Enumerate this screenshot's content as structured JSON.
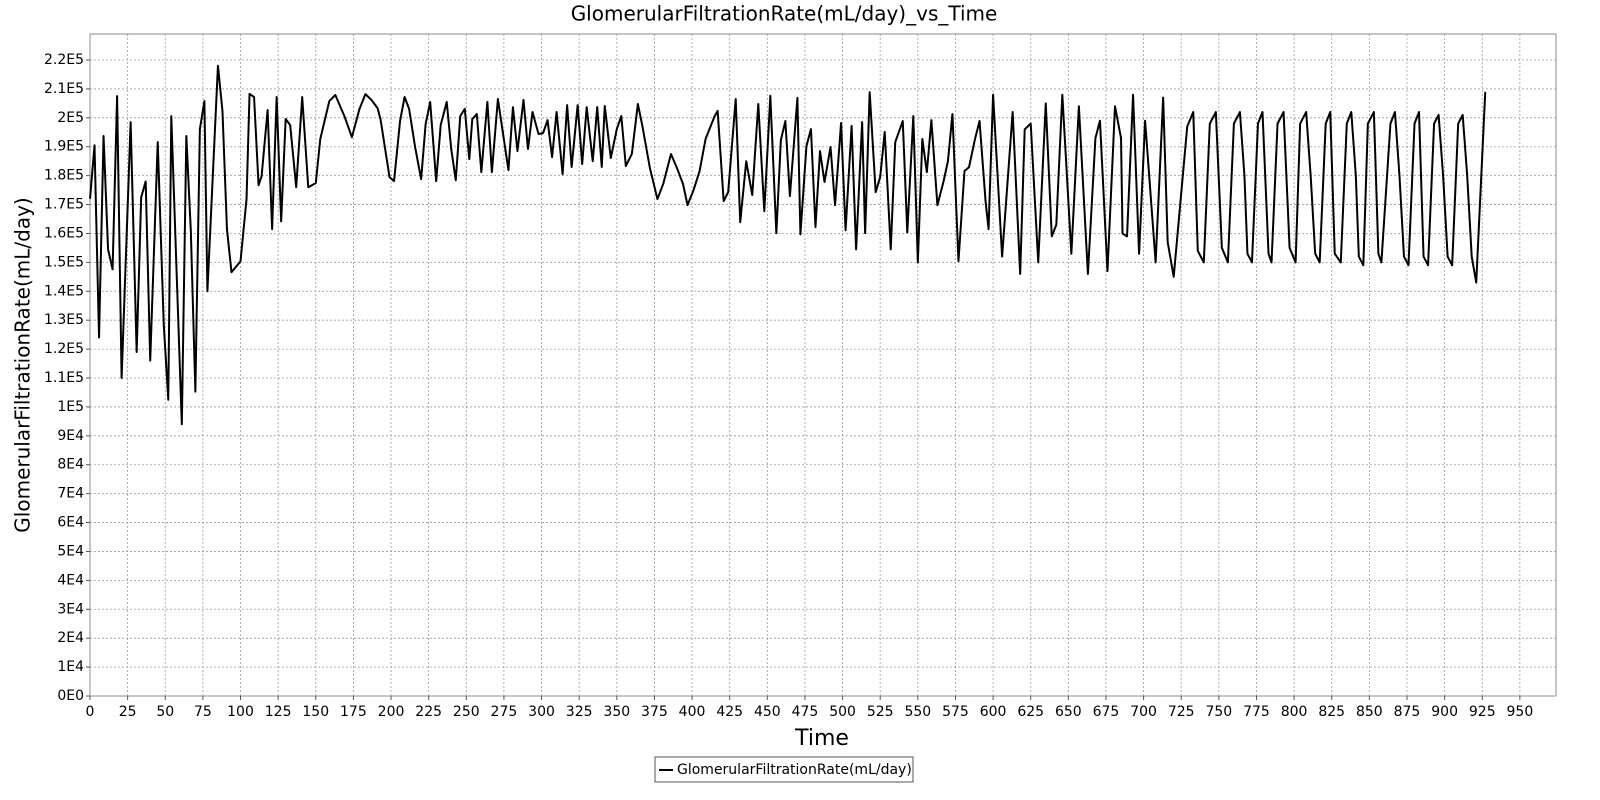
{
  "chart_data": {
    "type": "line",
    "title": "GlomerularFiltrationRate(mL/day)_vs_Time",
    "x_label": "Time",
    "y_label": "GlomerularFiltrationRate(mL/day)",
    "xlim": [
      0,
      974
    ],
    "ylim": [
      0,
      229000
    ],
    "xticks": [
      0,
      25,
      50,
      75,
      100,
      125,
      150,
      175,
      200,
      225,
      250,
      275,
      300,
      325,
      350,
      375,
      400,
      425,
      450,
      475,
      500,
      525,
      550,
      575,
      600,
      625,
      650,
      675,
      700,
      725,
      750,
      775,
      800,
      825,
      850,
      875,
      900,
      925,
      950
    ],
    "yticks": [
      {
        "value": 0,
        "label": "0E0"
      },
      {
        "value": 10000,
        "label": "1E4"
      },
      {
        "value": 20000,
        "label": "2E4"
      },
      {
        "value": 30000,
        "label": "3E4"
      },
      {
        "value": 40000,
        "label": "4E4"
      },
      {
        "value": 50000,
        "label": "5E4"
      },
      {
        "value": 60000,
        "label": "6E4"
      },
      {
        "value": 70000,
        "label": "7E4"
      },
      {
        "value": 80000,
        "label": "8E4"
      },
      {
        "value": 90000,
        "label": "9E4"
      },
      {
        "value": 100000,
        "label": "1E5"
      },
      {
        "value": 110000,
        "label": "1.1E5"
      },
      {
        "value": 120000,
        "label": "1.2E5"
      },
      {
        "value": 130000,
        "label": "1.3E5"
      },
      {
        "value": 140000,
        "label": "1.4E5"
      },
      {
        "value": 150000,
        "label": "1.5E5"
      },
      {
        "value": 160000,
        "label": "1.6E5"
      },
      {
        "value": 170000,
        "label": "1.7E5"
      },
      {
        "value": 180000,
        "label": "1.8E5"
      },
      {
        "value": 190000,
        "label": "1.9E5"
      },
      {
        "value": 200000,
        "label": "2E5"
      },
      {
        "value": 210000,
        "label": "2.1E5"
      },
      {
        "value": 220000,
        "label": "2.2E5"
      }
    ],
    "grid": true,
    "legend": "bottom",
    "x": [
      0,
      3,
      6,
      9,
      12,
      15,
      18,
      21,
      27,
      31,
      34,
      37,
      40,
      45,
      49,
      52,
      54,
      61,
      64,
      67,
      70,
      73,
      76,
      78,
      85,
      88,
      91,
      94,
      100,
      104,
      106,
      109,
      112,
      114,
      118,
      121,
      124,
      127,
      130,
      133,
      137,
      141,
      145,
      150,
      153,
      159,
      163,
      169,
      174,
      179,
      183,
      187,
      191,
      193,
      199,
      202,
      206,
      209,
      212,
      216,
      220,
      223,
      226,
      230,
      233,
      237,
      240,
      243,
      246,
      249,
      252,
      254,
      257,
      260,
      264,
      267,
      271,
      278,
      281,
      284,
      288,
      291,
      294,
      298,
      301,
      304,
      307,
      310,
      314,
      317,
      320,
      324,
      327,
      330,
      334,
      337,
      340,
      342,
      346,
      350,
      353,
      356,
      360,
      364,
      367,
      372,
      377,
      381,
      386,
      390,
      394,
      397,
      401,
      405,
      409,
      415,
      417,
      421,
      424,
      429,
      432,
      436,
      440,
      444,
      448,
      452,
      456,
      459,
      462,
      465,
      470,
      472,
      476,
      479,
      482,
      485,
      488,
      492,
      495,
      499,
      502,
      506,
      509,
      513,
      515,
      518,
      522,
      525,
      528,
      532,
      535,
      540,
      543,
      547,
      550,
      553,
      556,
      559,
      563,
      567,
      570,
      573,
      577,
      581,
      584,
      588,
      591,
      595,
      597,
      600,
      606,
      613,
      618,
      621,
      625,
      630,
      635,
      639,
      642,
      646,
      652,
      657,
      663,
      668,
      671,
      676,
      681,
      685,
      686,
      689,
      693,
      697,
      701,
      708,
      713,
      716,
      720,
      729,
      733,
      736,
      740,
      744,
      748,
      752,
      756,
      760,
      764,
      767,
      769,
      772,
      776,
      779,
      783,
      785,
      789,
      793,
      797,
      801,
      804,
      808,
      811,
      814,
      817,
      821,
      824,
      827,
      831,
      835,
      838,
      841,
      843,
      846,
      849,
      853,
      856,
      858,
      864,
      867,
      870,
      873,
      876,
      880,
      883,
      886,
      889,
      893,
      896,
      899,
      902,
      905,
      909,
      912,
      915,
      918,
      921,
      927
    ],
    "series": [
      {
        "name": "GlomerularFiltrationRate(mL/day)",
        "color": "#000000",
        "values": [
          172000,
          190500,
          124000,
          193700,
          154500,
          147600,
          207500,
          110000,
          198500,
          119000,
          172500,
          178000,
          116000,
          191600,
          128500,
          102500,
          200600,
          94000,
          193700,
          160800,
          105300,
          196100,
          205800,
          140000,
          218000,
          202400,
          161500,
          146600,
          150400,
          171900,
          208300,
          207200,
          176700,
          179800,
          202700,
          161500,
          207200,
          164200,
          199600,
          197500,
          176000,
          207200,
          176000,
          177400,
          192700,
          205800,
          207900,
          200600,
          193300,
          203000,
          208200,
          206200,
          203400,
          199600,
          179500,
          178100,
          198900,
          207200,
          203100,
          189900,
          178800,
          197900,
          205500,
          178100,
          197500,
          205500,
          189200,
          178400,
          200600,
          203100,
          185700,
          199600,
          201300,
          181200,
          205500,
          181200,
          206500,
          181900,
          203700,
          188500,
          206200,
          189200,
          202000,
          194400,
          194700,
          199200,
          186400,
          202000,
          180500,
          204400,
          183000,
          204400,
          184000,
          203700,
          185000,
          203700,
          183000,
          204100,
          186100,
          196100,
          200600,
          183300,
          187500,
          204800,
          197200,
          182600,
          171900,
          177400,
          187500,
          182600,
          177100,
          169800,
          175000,
          181600,
          192700,
          200600,
          202400,
          171200,
          174300,
          206500,
          163900,
          185000,
          173300,
          204800,
          167700,
          207600,
          160100,
          192300,
          198900,
          172900,
          206900,
          159700,
          190200,
          196100,
          162200,
          188500,
          177800,
          189900,
          169800,
          198200,
          161100,
          197200,
          154500,
          198500,
          160100,
          208900,
          174300,
          179500,
          195100,
          154500,
          191600,
          198900,
          160400,
          200600,
          150000,
          192700,
          181200,
          199200,
          169800,
          177800,
          185000,
          201300,
          150400,
          181600,
          182900,
          192700,
          198900,
          171200,
          161500,
          208000,
          152000,
          202000,
          146000,
          196000,
          198000,
          150000,
          205000,
          159000,
          163000,
          208000,
          153000,
          204000,
          146000,
          193000,
          199000,
          147000,
          204000,
          193000,
          160000,
          159000,
          208000,
          153000,
          199000,
          150000,
          207000,
          157000,
          145000,
          197000,
          202000,
          154000,
          150000,
          198000,
          202000,
          155000,
          150000,
          198000,
          202000,
          180000,
          153000,
          150000,
          198000,
          202000,
          153000,
          150000,
          198000,
          202000,
          155000,
          150000,
          198000,
          202000,
          180000,
          153000,
          150000,
          198000,
          202000,
          153000,
          150000,
          198000,
          202000,
          180000,
          152000,
          149000,
          198000,
          202000,
          153000,
          150000,
          198000,
          202000,
          180000,
          152000,
          149000,
          198000,
          202000,
          152000,
          149000,
          198000,
          201000,
          180000,
          152000,
          149000,
          198000,
          201000,
          180000,
          152000,
          143000,
          209000
        ]
      }
    ]
  }
}
